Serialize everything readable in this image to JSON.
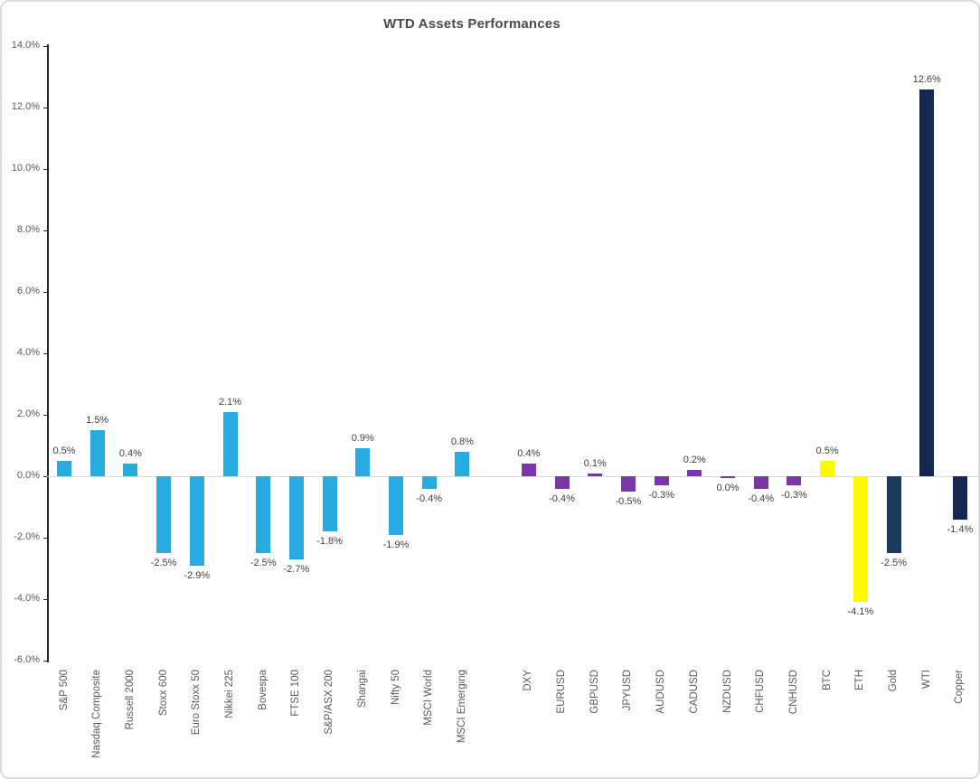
{
  "title": "WTD Assets Performances",
  "palette": {
    "equities_blue": "#29ABE2",
    "currencies_purple": "#7A35A8",
    "crypto_yellow": "#FDF900",
    "gold_navy": "#1F3A5F",
    "dark_navy": "#132850",
    "axis_line": "#262626",
    "zero_line": "#d9d9d9",
    "tick_label": "#595959",
    "value_label": "#404040",
    "frame_border": "#dcdcdc"
  },
  "chart_data": {
    "type": "bar",
    "title": "WTD Assets Performances",
    "xlabel": "",
    "ylabel": "",
    "y_unit": "%",
    "ylim": [
      -6,
      14
    ],
    "y_tick_step": 2,
    "grid": "zero-line-only",
    "legend": "none",
    "y_ticks": [
      {
        "value": 14,
        "label": "14.0%"
      },
      {
        "value": 12,
        "label": "12.0%"
      },
      {
        "value": 10,
        "label": "10.0%"
      },
      {
        "value": 8,
        "label": "8.0%"
      },
      {
        "value": 6,
        "label": "6.0%"
      },
      {
        "value": 4,
        "label": "4.0%"
      },
      {
        "value": 2,
        "label": "2.0%"
      },
      {
        "value": 0,
        "label": "0.0%"
      },
      {
        "value": -2,
        "label": "-2.0%"
      },
      {
        "value": -4,
        "label": "-4.0%"
      },
      {
        "value": -6,
        "label": "-6.0%"
      }
    ],
    "groups": [
      {
        "name": "equity-indices",
        "color": "#29ABE2",
        "gap_before": false,
        "items": [
          {
            "label": "S&P 500",
            "value": 0.5,
            "display": "0.5%"
          },
          {
            "label": "Nasdaq Composite",
            "value": 1.5,
            "display": "1.5%"
          },
          {
            "label": "Russell 2000",
            "value": 0.4,
            "display": "0.4%"
          },
          {
            "label": "Stoxx 600",
            "value": -2.5,
            "display": "-2.5%"
          },
          {
            "label": "Euro Stoxx 50",
            "value": -2.9,
            "display": "-2.9%"
          },
          {
            "label": "Nikkei 225",
            "value": 2.1,
            "display": "2.1%"
          },
          {
            "label": "Bovespa",
            "value": -2.5,
            "display": "-2.5%"
          },
          {
            "label": "FTSE 100",
            "value": -2.7,
            "display": "-2.7%"
          },
          {
            "label": "S&P/ASX 200",
            "value": -1.8,
            "display": "-1.8%"
          },
          {
            "label": "Shangai",
            "value": 0.9,
            "display": "0.9%"
          },
          {
            "label": "Nifty 50",
            "value": -1.9,
            "display": "-1.9%"
          },
          {
            "label": "MSCI World",
            "value": -0.4,
            "display": "-0.4%"
          },
          {
            "label": "MSCI Emerging",
            "value": 0.8,
            "display": "0.8%"
          }
        ]
      },
      {
        "name": "currencies",
        "color": "#7A35A8",
        "gap_before": true,
        "items": [
          {
            "label": "DXY",
            "value": 0.4,
            "display": "0.4%"
          },
          {
            "label": "EURUSD",
            "value": -0.4,
            "display": "-0.4%"
          },
          {
            "label": "GBPUSD",
            "value": 0.1,
            "display": "0.1%"
          },
          {
            "label": "JPYUSD",
            "value": -0.5,
            "display": "-0.5%"
          },
          {
            "label": "AUDUSD",
            "value": -0.3,
            "display": "-0.3%"
          },
          {
            "label": "CADUSD",
            "value": 0.2,
            "display": "0.2%"
          },
          {
            "label": "NZDUSD",
            "value": 0.0,
            "display": "0.0%"
          },
          {
            "label": "CHFUSD",
            "value": -0.4,
            "display": "-0.4%"
          },
          {
            "label": "CNHUSD",
            "value": -0.3,
            "display": "-0.3%"
          }
        ]
      },
      {
        "name": "crypto",
        "color": "#FDF900",
        "gap_before": false,
        "items": [
          {
            "label": "BTC",
            "value": 0.5,
            "display": "0.5%"
          },
          {
            "label": "ETH",
            "value": -4.1,
            "display": "-4.1%"
          }
        ]
      },
      {
        "name": "commodities",
        "color": "#132850",
        "gap_before": false,
        "items": [
          {
            "label": "Gold",
            "value": -2.5,
            "display": "-2.5%",
            "color": "#1F3A5F"
          },
          {
            "label": "WTI",
            "value": 12.6,
            "display": "12.6%",
            "color": "#132850"
          },
          {
            "label": "Copper",
            "value": -1.4,
            "display": "-1.4%",
            "color": "#132850"
          }
        ]
      }
    ]
  }
}
